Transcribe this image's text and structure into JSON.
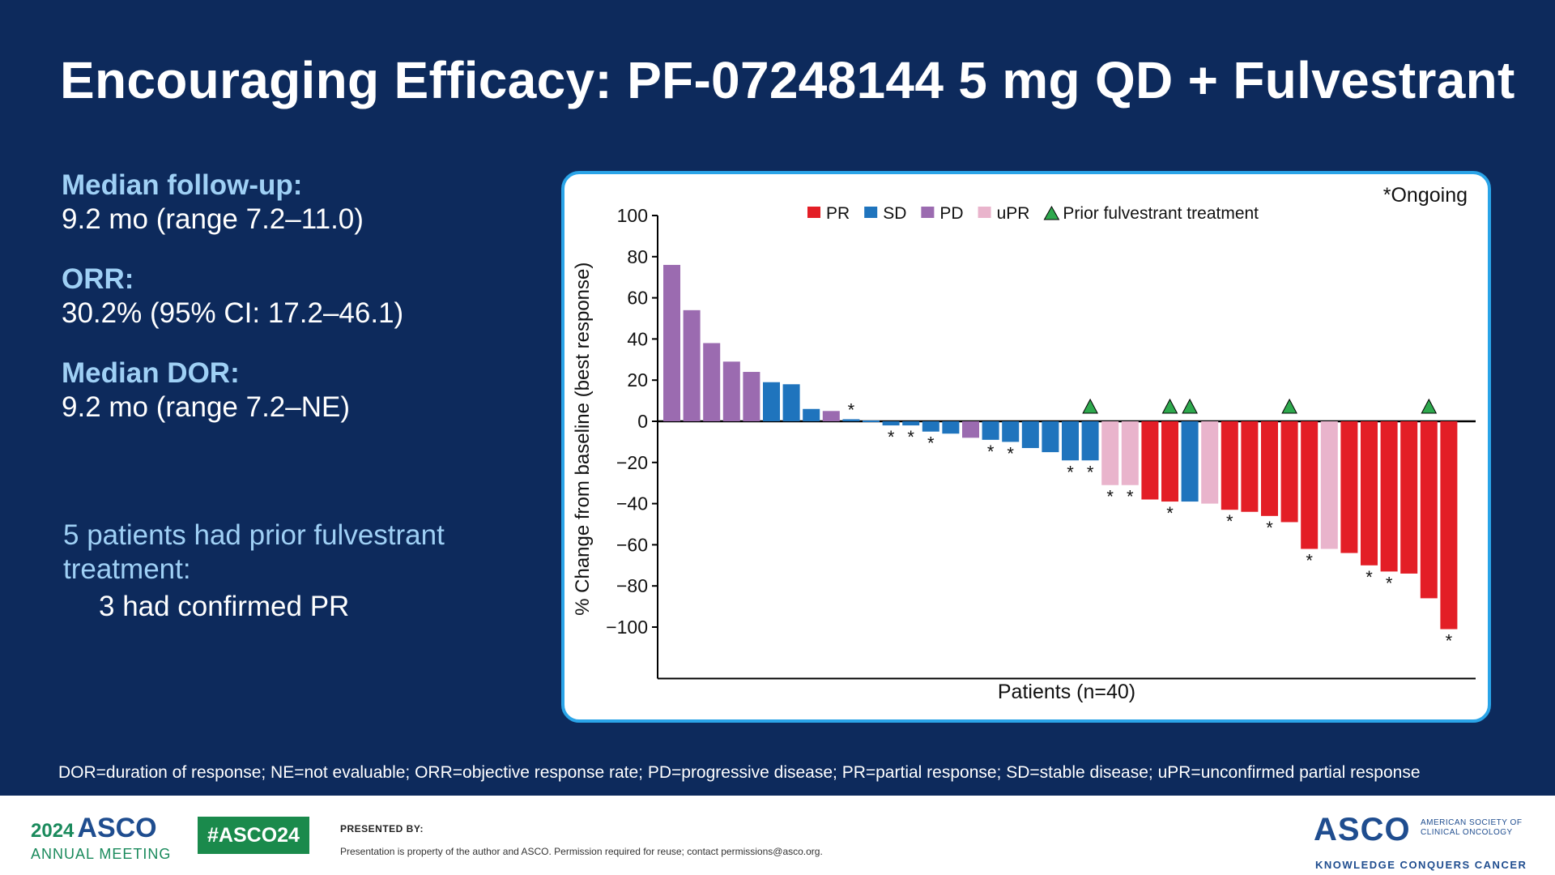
{
  "slide": {
    "title": "Encouraging Efficacy: PF-07248144 5 mg QD + Fulvestrant"
  },
  "stats": [
    {
      "label": "Median follow-up:",
      "value": "9.2 mo (range 7.2–11.0)"
    },
    {
      "label": "ORR:",
      "value": "30.2% (95% CI: 17.2–46.1)"
    },
    {
      "label": "Median DOR:",
      "value": "9.2 mo (range 7.2–NE)"
    }
  ],
  "prior_note": {
    "heading": "5 patients had prior fulvestrant treatment:",
    "sub": "3 had confirmed PR"
  },
  "footnote": "DOR=duration of response; NE=not evaluable;  ORR=objective response rate; PD=progressive disease; PR=partial response; SD=stable disease; uPR=unconfirmed  partial response",
  "footer": {
    "year": "2024",
    "asco": "ASCO",
    "meeting": "ANNUAL MEETING",
    "hashtag": "#ASCO24",
    "presented_by": "PRESENTED BY:",
    "property": "Presentation is property of the author and ASCO. Permission required for reuse; contact permissions@asco.org.",
    "asco_right": "ASCO",
    "society": "AMERICAN SOCIETY OF CLINICAL ONCOLOGY",
    "tagline": "KNOWLEDGE CONQUERS CANCER"
  },
  "chart_data": {
    "type": "bar",
    "title": "",
    "xlabel": "Patients (n=40)",
    "ylabel": "% Change from baseline (best response)",
    "ylim": [
      -125,
      100
    ],
    "yticks": [
      100,
      80,
      60,
      40,
      20,
      0,
      -20,
      -40,
      -60,
      -80,
      -100
    ],
    "ytick_labels": [
      "100",
      "80",
      "60",
      "40",
      "20",
      "0",
      "−20",
      "−40",
      "−60",
      "−80",
      "−100"
    ],
    "ongoing_note": "*Ongoing",
    "ongoing_marker": "*",
    "legend_position": "top",
    "legend": [
      {
        "key": "PR",
        "label": "PR",
        "color": "#e31e26"
      },
      {
        "key": "SD",
        "label": "SD",
        "color": "#1f74bd"
      },
      {
        "key": "PD",
        "label": "PD",
        "color": "#9b6bb0"
      },
      {
        "key": "uPR",
        "label": "uPR",
        "color": "#e9b4cc"
      },
      {
        "key": "prior",
        "label": "Prior fulvestrant treatment",
        "color": "#2ea84d",
        "marker": "triangle"
      }
    ],
    "patients": [
      {
        "value": 76,
        "response": "PD",
        "ongoing": false,
        "prior": false
      },
      {
        "value": 54,
        "response": "PD",
        "ongoing": false,
        "prior": false
      },
      {
        "value": 38,
        "response": "PD",
        "ongoing": false,
        "prior": false
      },
      {
        "value": 29,
        "response": "PD",
        "ongoing": false,
        "prior": false
      },
      {
        "value": 24,
        "response": "PD",
        "ongoing": false,
        "prior": false
      },
      {
        "value": 19,
        "response": "SD",
        "ongoing": false,
        "prior": false
      },
      {
        "value": 18,
        "response": "SD",
        "ongoing": false,
        "prior": false
      },
      {
        "value": 6,
        "response": "SD",
        "ongoing": false,
        "prior": false
      },
      {
        "value": 5,
        "response": "PD",
        "ongoing": false,
        "prior": false
      },
      {
        "value": 1,
        "response": "SD",
        "ongoing": true,
        "prior": false
      },
      {
        "value": 0,
        "response": "SD",
        "ongoing": false,
        "prior": false
      },
      {
        "value": -2,
        "response": "SD",
        "ongoing": true,
        "prior": false
      },
      {
        "value": -2,
        "response": "SD",
        "ongoing": true,
        "prior": false
      },
      {
        "value": -5,
        "response": "SD",
        "ongoing": true,
        "prior": false
      },
      {
        "value": -6,
        "response": "SD",
        "ongoing": false,
        "prior": false
      },
      {
        "value": -8,
        "response": "PD",
        "ongoing": false,
        "prior": false
      },
      {
        "value": -9,
        "response": "SD",
        "ongoing": true,
        "prior": false
      },
      {
        "value": -10,
        "response": "SD",
        "ongoing": true,
        "prior": false
      },
      {
        "value": -13,
        "response": "SD",
        "ongoing": false,
        "prior": false
      },
      {
        "value": -15,
        "response": "SD",
        "ongoing": false,
        "prior": false
      },
      {
        "value": -19,
        "response": "SD",
        "ongoing": true,
        "prior": false
      },
      {
        "value": -19,
        "response": "SD",
        "ongoing": true,
        "prior": true
      },
      {
        "value": -31,
        "response": "uPR",
        "ongoing": true,
        "prior": false
      },
      {
        "value": -31,
        "response": "uPR",
        "ongoing": true,
        "prior": false
      },
      {
        "value": -38,
        "response": "PR",
        "ongoing": false,
        "prior": false
      },
      {
        "value": -39,
        "response": "PR",
        "ongoing": true,
        "prior": true
      },
      {
        "value": -39,
        "response": "SD",
        "ongoing": false,
        "prior": true
      },
      {
        "value": -40,
        "response": "uPR",
        "ongoing": false,
        "prior": false
      },
      {
        "value": -43,
        "response": "PR",
        "ongoing": true,
        "prior": false
      },
      {
        "value": -44,
        "response": "PR",
        "ongoing": false,
        "prior": false
      },
      {
        "value": -46,
        "response": "PR",
        "ongoing": true,
        "prior": false
      },
      {
        "value": -49,
        "response": "PR",
        "ongoing": false,
        "prior": true
      },
      {
        "value": -62,
        "response": "PR",
        "ongoing": true,
        "prior": false
      },
      {
        "value": -62,
        "response": "uPR",
        "ongoing": false,
        "prior": false
      },
      {
        "value": -64,
        "response": "PR",
        "ongoing": false,
        "prior": false
      },
      {
        "value": -70,
        "response": "PR",
        "ongoing": true,
        "prior": false
      },
      {
        "value": -73,
        "response": "PR",
        "ongoing": true,
        "prior": false
      },
      {
        "value": -74,
        "response": "PR",
        "ongoing": false,
        "prior": false
      },
      {
        "value": -86,
        "response": "PR",
        "ongoing": false,
        "prior": true
      },
      {
        "value": -101,
        "response": "PR",
        "ongoing": true,
        "prior": false
      }
    ]
  }
}
